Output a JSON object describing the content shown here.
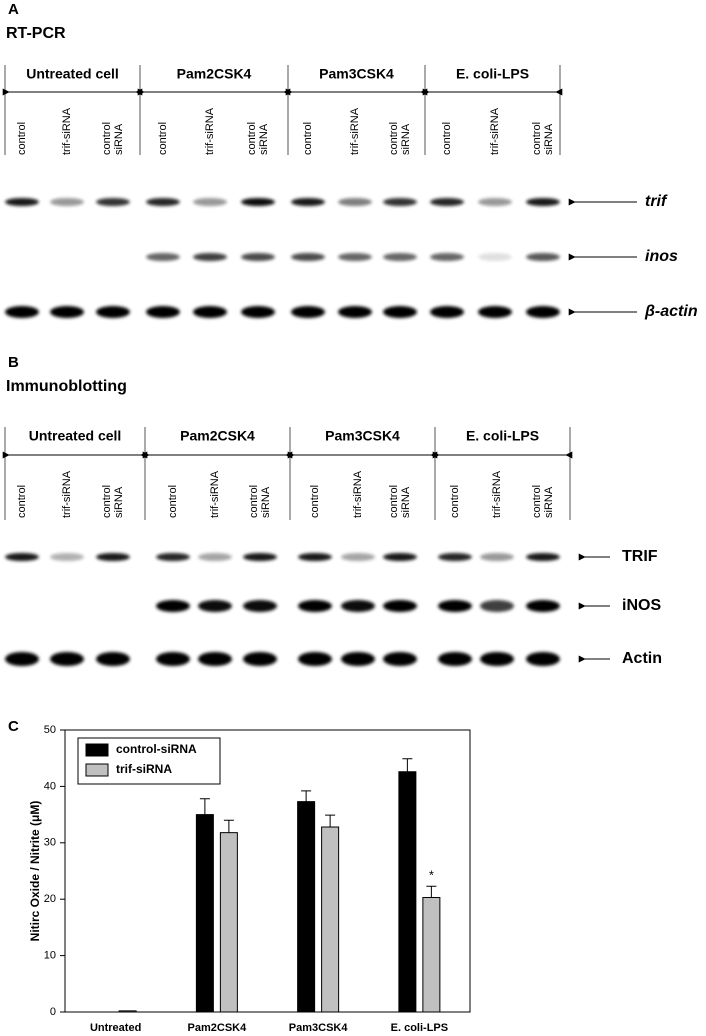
{
  "panels": [
    {
      "letter": "A",
      "title": "RT-PCR",
      "groups": [
        "Untreated cell",
        "Pam2CSK4",
        "Pam3CSK4",
        "E. coli-LPS"
      ],
      "lanes": [
        [
          "control"
        ],
        [
          "trif-siRNA"
        ],
        [
          "control",
          "siRNA"
        ]
      ],
      "bands": [
        "trif",
        "inos",
        "β-actin"
      ]
    },
    {
      "letter": "B",
      "title": "Immunoblotting",
      "groups": [
        "Untreated cell",
        "Pam2CSK4",
        "Pam3CSK4",
        "E. coli-LPS"
      ],
      "lanes": [
        [
          "control"
        ],
        [
          "trif-siRNA"
        ],
        [
          "control",
          "siRNA"
        ]
      ],
      "bands": [
        "TRIF",
        "iNOS",
        "Actin"
      ]
    }
  ],
  "chart_data": {
    "type": "bar",
    "letter": "C",
    "ylabel": "Nitirc Oxide / Nitrite (μM)",
    "categories": [
      "Untreated",
      "Pam2CSK4",
      "Pam3CSK4",
      "E. coli-LPS"
    ],
    "series": [
      {
        "name": "control-siRNA",
        "color": "#000000",
        "values": [
          0,
          35,
          37.3,
          42.6
        ],
        "errors": [
          0,
          2.8,
          1.9,
          2.3
        ]
      },
      {
        "name": "trif-siRNA",
        "color": "#c0c0c0",
        "values": [
          0.2,
          31.8,
          32.8,
          20.3
        ],
        "errors": [
          0,
          2.2,
          2.1,
          2.0
        ]
      }
    ],
    "annotation": "*",
    "ylim": [
      0,
      50
    ],
    "yticks": [
      0,
      10,
      20,
      30,
      40,
      50
    ],
    "legend": "upper left"
  }
}
